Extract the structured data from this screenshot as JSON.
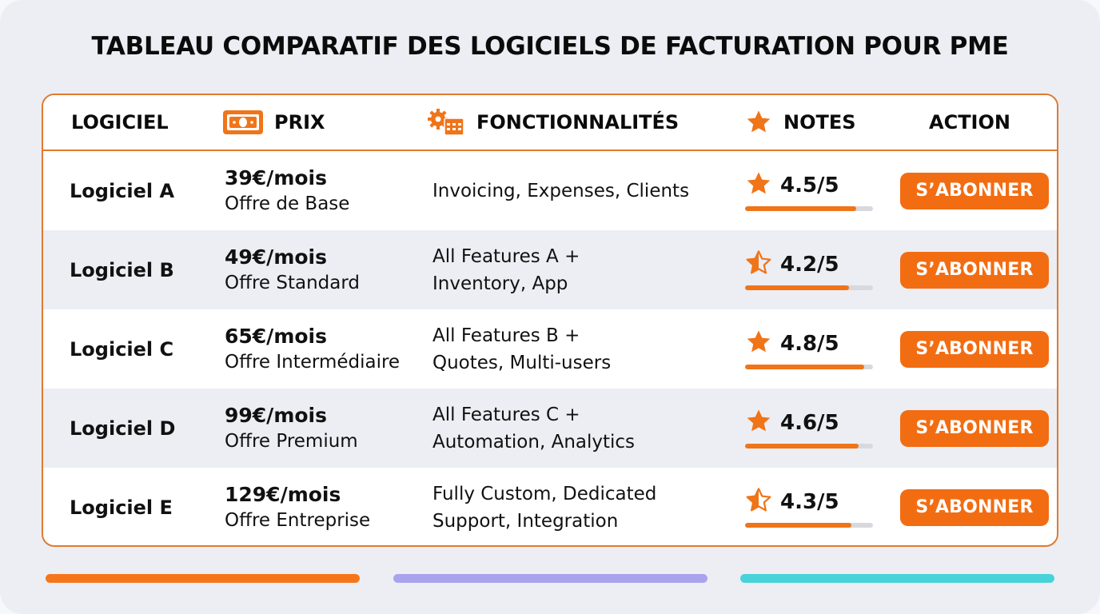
{
  "title": "TABLEAU COMPARATIF DES LOGICIELS DE FACTURATION POUR PME",
  "columns": {
    "software": "LOGICIEL",
    "price": "PRIX",
    "features": "FONCTIONNALITÉS",
    "ratings": "NOTES",
    "action": "ACTION"
  },
  "icons": {
    "price": "money-bill-icon",
    "features": "gear-calendar-icon",
    "ratings": "star-icon"
  },
  "rows": [
    {
      "name": "Logiciel A",
      "price": "39€/mois",
      "plan": "Offre de Base",
      "features_line1": "Invoicing, Expenses, Clients",
      "features_line2": "",
      "rating": "4.5/5",
      "rating_value": 4.5,
      "star": "full",
      "button": "S’ABONNER"
    },
    {
      "name": "Logiciel B",
      "price": "49€/mois",
      "plan": "Offre Standard",
      "features_line1": "All Features A +",
      "features_line2": "Inventory, App",
      "rating": "4.2/5",
      "rating_value": 4.2,
      "star": "half",
      "button": "S’ABONNER"
    },
    {
      "name": "Logiciel C",
      "price": "65€/mois",
      "plan": "Offre Intermédiaire",
      "features_line1": "All Features B +",
      "features_line2": "Quotes, Multi-users",
      "rating": "4.8/5",
      "rating_value": 4.8,
      "star": "full",
      "button": "S’ABONNER"
    },
    {
      "name": "Logiciel D",
      "price": "99€/mois",
      "plan": "Offre Premium",
      "features_line1": "All Features C +",
      "features_line2": "Automation, Analytics",
      "rating": "4.6/5",
      "rating_value": 4.6,
      "star": "full",
      "button": "S’ABONNER"
    },
    {
      "name": "Logiciel E",
      "price": "129€/mois",
      "plan": "Offre Entreprise",
      "features_line1": "Fully Custom, Dedicated",
      "features_line2": "Support, Integration",
      "rating": "4.3/5",
      "rating_value": 4.3,
      "star": "half",
      "button": "S’ABONNER"
    }
  ],
  "colors": {
    "accent": "#f26d12",
    "border": "#e07a2e",
    "alt_row": "#eceef4",
    "bar_track": "#d8d9de",
    "deco_orange": "#f5761a",
    "deco_purple": "#a9a3ee",
    "deco_cyan": "#48d3da"
  }
}
